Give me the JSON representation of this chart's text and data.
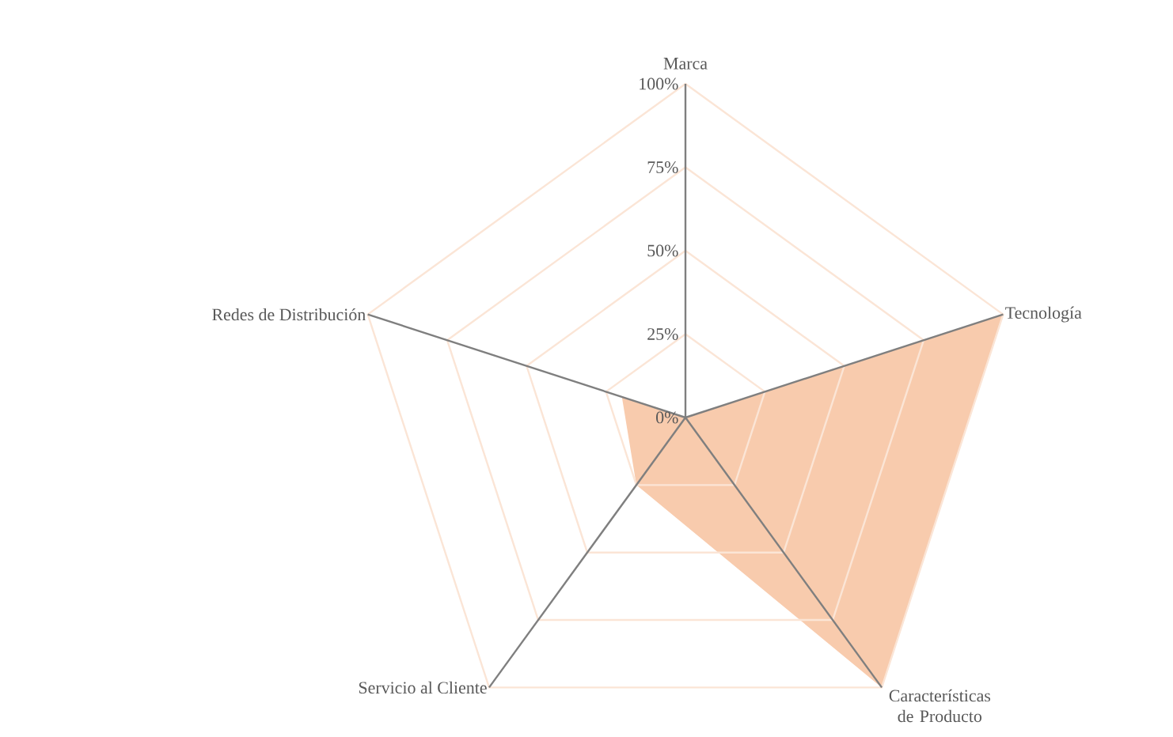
{
  "chart_data": {
    "type": "radar",
    "categories": [
      "Marca",
      "Tecnología",
      "Características de Producto",
      "Servicio al Cliente",
      "Redes de Distribución"
    ],
    "series": [
      {
        "color": "#f8cbad",
        "values": [
          0,
          100,
          100,
          25,
          20
        ]
      }
    ],
    "ylim": [
      0,
      100
    ],
    "yticks": [
      {
        "value": 0,
        "label": "0%"
      },
      {
        "value": 25,
        "label": "25%"
      },
      {
        "value": 50,
        "label": "50%"
      },
      {
        "value": 75,
        "label": "75%"
      },
      {
        "value": 100,
        "label": "100%"
      }
    ],
    "grid": true
  }
}
